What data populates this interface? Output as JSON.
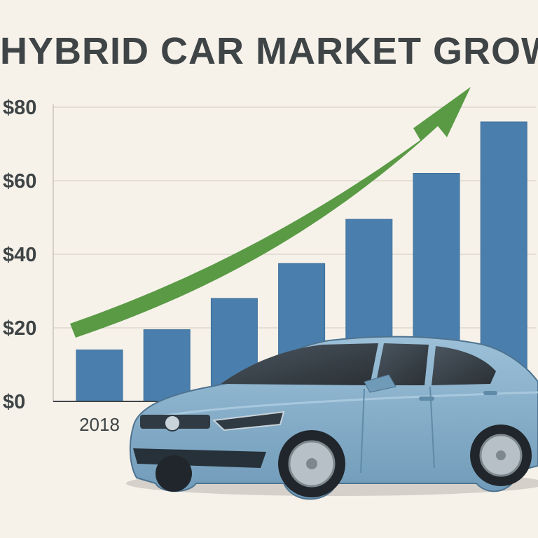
{
  "title": "HYBRID CAR MARKET GROWTH",
  "chart_data": {
    "type": "bar",
    "title": "HYBRID CAR MARKET GROWTH",
    "categories": [
      "2018",
      "",
      "",
      "",
      "",
      "",
      ""
    ],
    "values": [
      14,
      19.5,
      28,
      37.5,
      49.5,
      62,
      76
    ],
    "ylim": [
      0,
      80
    ],
    "yticks": [
      "$0",
      "$20",
      "$40",
      "$60",
      "$80"
    ],
    "ytick_values": [
      0,
      20,
      40,
      60,
      80
    ],
    "xlabel": "",
    "ylabel": "",
    "grid": true,
    "legend": "none",
    "trend_arrow": "up",
    "colors": {
      "bar": "#4a7fad",
      "bar_edge": "#3d6f9b",
      "arrow": "#5a9a45",
      "grid": "#ddd7cc",
      "axis": "#3f4446",
      "car_body": "#89b0cc",
      "car_dark": "#5f8aa8",
      "background": "#f6f2ea"
    }
  }
}
